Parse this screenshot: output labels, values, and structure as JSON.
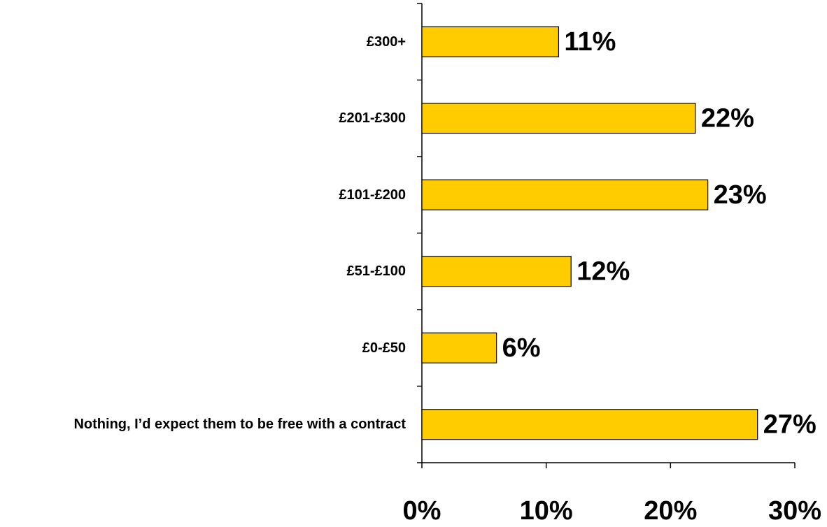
{
  "chart_data": {
    "type": "bar",
    "orientation": "horizontal",
    "categories": [
      "£300+",
      "£201-£300",
      "£101-£200",
      "£51-£100",
      "£0-£50",
      "Nothing, I’d expect them to be free with a contract"
    ],
    "values": [
      11,
      22,
      23,
      12,
      6,
      27
    ],
    "value_labels": [
      "11%",
      "22%",
      "23%",
      "12%",
      "6%",
      "27%"
    ],
    "color": "#ffcc00",
    "xlim": [
      0,
      30
    ],
    "xticks": [
      {
        "value": 0,
        "label": "0%"
      },
      {
        "value": 10,
        "label": "10%"
      },
      {
        "value": 20,
        "label": "20%"
      },
      {
        "value": 30,
        "label": "30%"
      }
    ],
    "grid": false
  }
}
